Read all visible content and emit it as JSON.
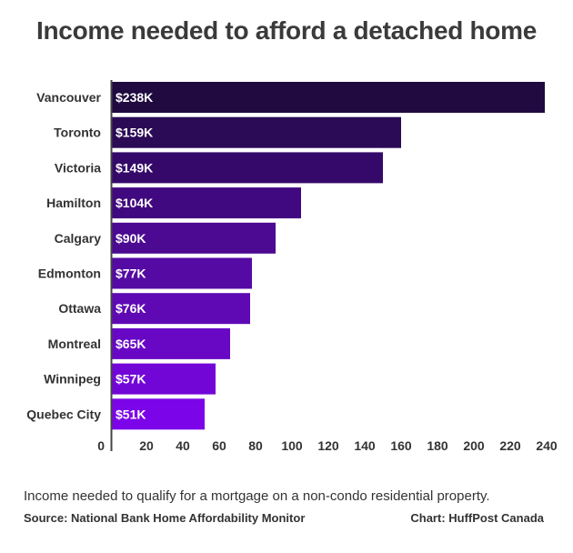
{
  "chart_data": {
    "type": "bar",
    "orientation": "horizontal",
    "title": "Income needed to afford a detached home",
    "categories": [
      "Vancouver",
      "Toronto",
      "Victoria",
      "Hamilton",
      "Calgary",
      "Edmonton",
      "Ottawa",
      "Montreal",
      "Winnipeg",
      "Quebec City"
    ],
    "values": [
      238,
      159,
      149,
      104,
      90,
      77,
      76,
      65,
      57,
      51
    ],
    "value_labels": [
      "$238K",
      "$159K",
      "$149K",
      "$104K",
      "$90K",
      "$77K",
      "$76K",
      "$65K",
      "$57K",
      "$51K"
    ],
    "xticks": [
      0,
      20,
      40,
      60,
      80,
      100,
      120,
      140,
      160,
      180,
      200,
      220,
      240
    ],
    "xlim": [
      0,
      240
    ],
    "grid": false,
    "colors": [
      "#200a40",
      "#2b0a56",
      "#35096a",
      "#41097f",
      "#4b0a91",
      "#550aa3",
      "#5f09b5",
      "#6808c5",
      "#7206d7",
      "#7c04e9"
    ]
  },
  "footer": {
    "description": "Income needed to qualify for a mortgage on a non-condo residential property.",
    "source": "Source: National Bank Home Affordability Monitor",
    "credit": "Chart: HuffPost Canada"
  }
}
